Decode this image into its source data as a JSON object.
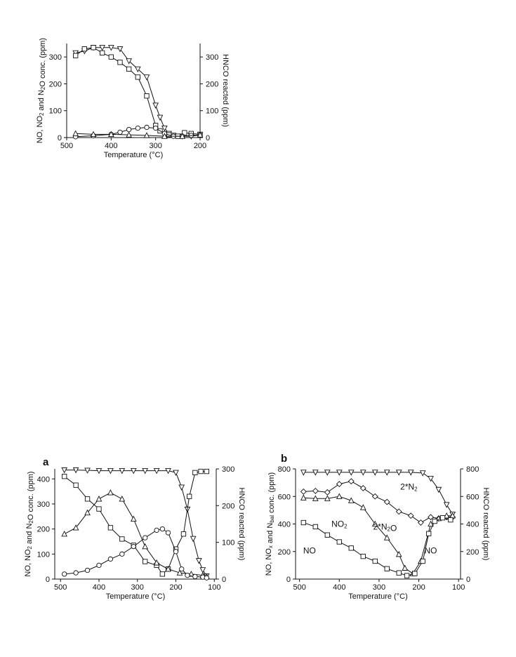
{
  "chart_data": [
    {
      "id": "top",
      "type": "line",
      "panel_label": "",
      "xlabel": "Temperature (°C)",
      "ylabel_parts": [
        [
          "NO, NO",
          ""
        ],
        [
          "2",
          "sub"
        ],
        [
          " and N",
          ""
        ],
        [
          "2",
          "sub"
        ],
        [
          "O conc. (ppm)",
          ""
        ]
      ],
      "y2label": "HNCO reacted (ppm)",
      "xlim": [
        500,
        200
      ],
      "ylim": [
        0,
        350
      ],
      "y2lim": [
        0,
        350
      ],
      "xticks": [
        500,
        400,
        300,
        200
      ],
      "yticks": [
        0,
        100,
        200,
        300
      ],
      "y2ticks": [
        0,
        100,
        200,
        300
      ],
      "series": [
        {
          "marker": "tri-down",
          "axis": "y2",
          "x": [
            480,
            460,
            440,
            420,
            400,
            380,
            360,
            340,
            320,
            300,
            290,
            280,
            270,
            260,
            240,
            220,
            200
          ],
          "y": [
            315,
            322,
            335,
            335,
            335,
            330,
            285,
            255,
            225,
            120,
            75,
            35,
            15,
            8,
            5,
            5,
            10
          ]
        },
        {
          "marker": "square",
          "axis": "y",
          "x": [
            480,
            460,
            440,
            420,
            400,
            380,
            360,
            340,
            320,
            300,
            290,
            270,
            250,
            235,
            220,
            200
          ],
          "y": [
            305,
            330,
            335,
            315,
            300,
            280,
            255,
            225,
            155,
            45,
            25,
            10,
            5,
            18,
            15,
            12
          ]
        },
        {
          "marker": "circle",
          "axis": "y",
          "x": [
            480,
            440,
            400,
            380,
            360,
            340,
            320,
            300,
            280,
            260,
            240,
            220,
            200
          ],
          "y": [
            3,
            7,
            12,
            20,
            30,
            35,
            38,
            35,
            15,
            5,
            5,
            8,
            10
          ]
        },
        {
          "marker": "triangle",
          "axis": "y",
          "x": [
            480,
            440,
            400,
            360,
            320,
            280,
            240,
            200
          ],
          "y": [
            15,
            12,
            12,
            10,
            8,
            5,
            5,
            10
          ]
        }
      ],
      "annotations": []
    },
    {
      "id": "a",
      "type": "line",
      "panel_label": "a",
      "xlabel": "Temperature (°C)",
      "ylabel_parts": [
        [
          "NO, NO",
          ""
        ],
        [
          "2",
          "sub"
        ],
        [
          " and N",
          ""
        ],
        [
          "2",
          "sub"
        ],
        [
          "O conc. (ppm)",
          ""
        ]
      ],
      "y2label": "HNCO reacted (ppm)",
      "xlim": [
        515,
        95
      ],
      "ylim": [
        0,
        440
      ],
      "y2lim": [
        0,
        300
      ],
      "xticks": [
        500,
        400,
        300,
        200,
        100
      ],
      "yticks": [
        0,
        100,
        200,
        300,
        400
      ],
      "y2ticks": [
        0,
        100,
        200,
        300
      ],
      "series": [
        {
          "marker": "tri-down",
          "axis": "y2",
          "x": [
            490,
            460,
            430,
            400,
            370,
            340,
            310,
            280,
            250,
            220,
            200,
            185,
            170,
            155,
            140,
            130,
            120
          ],
          "y": [
            297,
            297,
            296,
            295,
            295,
            295,
            295,
            295,
            295,
            295,
            290,
            250,
            190,
            110,
            50,
            25,
            8
          ]
        },
        {
          "marker": "square",
          "axis": "y",
          "x": [
            490,
            460,
            430,
            400,
            370,
            340,
            310,
            280,
            250,
            235,
            220,
            200,
            180,
            165,
            150,
            135,
            120
          ],
          "y": [
            410,
            375,
            320,
            280,
            205,
            160,
            135,
            70,
            55,
            20,
            40,
            120,
            180,
            330,
            425,
            430,
            430
          ]
        },
        {
          "marker": "triangle",
          "axis": "y",
          "x": [
            490,
            460,
            430,
            400,
            370,
            340,
            310,
            280,
            250,
            220,
            190,
            160,
            130,
            120
          ],
          "y": [
            180,
            205,
            265,
            320,
            345,
            320,
            240,
            130,
            65,
            40,
            25,
            20,
            15,
            10
          ]
        },
        {
          "marker": "circle",
          "axis": "y",
          "x": [
            490,
            460,
            430,
            400,
            370,
            340,
            310,
            280,
            250,
            235,
            220,
            200,
            185,
            170,
            150,
            130,
            120
          ],
          "y": [
            20,
            25,
            35,
            55,
            80,
            100,
            130,
            165,
            195,
            200,
            185,
            110,
            40,
            15,
            10,
            8,
            5
          ]
        }
      ],
      "annotations": []
    },
    {
      "id": "b",
      "type": "line",
      "panel_label": "b",
      "xlabel": "Temperature (°C)",
      "ylabel_parts": [
        [
          "NO, NO",
          ""
        ],
        [
          "x",
          "sub"
        ],
        [
          " and N",
          ""
        ],
        [
          "bal",
          "sub"
        ],
        [
          " conc. (ppm)",
          ""
        ]
      ],
      "y2label": "HNCO reacted (ppm)",
      "xlim": [
        510,
        95
      ],
      "ylim": [
        0,
        800
      ],
      "y2lim": [
        0,
        800
      ],
      "xticks": [
        500,
        400,
        300,
        200,
        100
      ],
      "yticks": [
        0,
        200,
        400,
        600,
        800
      ],
      "y2ticks": [
        0,
        200,
        400,
        600,
        800
      ],
      "series": [
        {
          "marker": "tri-down",
          "axis": "y2",
          "x": [
            490,
            460,
            430,
            400,
            370,
            340,
            310,
            280,
            250,
            220,
            190,
            170,
            150,
            130,
            115
          ],
          "y": [
            775,
            775,
            775,
            775,
            775,
            775,
            775,
            775,
            775,
            775,
            770,
            730,
            650,
            540,
            470
          ]
        },
        {
          "marker": "diamond",
          "axis": "y",
          "x": [
            490,
            460,
            430,
            400,
            370,
            340,
            310,
            280,
            250,
            220,
            195,
            170,
            150,
            130,
            115
          ],
          "y": [
            635,
            640,
            630,
            690,
            710,
            660,
            600,
            560,
            490,
            460,
            410,
            450,
            440,
            450,
            450
          ]
        },
        {
          "marker": "triangle",
          "axis": "y",
          "x": [
            490,
            460,
            430,
            400,
            370,
            340,
            310,
            280,
            250,
            235,
            215,
            195,
            170,
            150,
            130,
            115
          ],
          "y": [
            590,
            585,
            585,
            600,
            570,
            520,
            400,
            300,
            180,
            80,
            40,
            130,
            400,
            440,
            460,
            460
          ]
        },
        {
          "marker": "square",
          "axis": "y",
          "x": [
            490,
            460,
            430,
            400,
            370,
            340,
            310,
            280,
            250,
            230,
            210,
            190,
            175,
            160,
            140,
            120
          ],
          "y": [
            410,
            380,
            320,
            270,
            225,
            165,
            130,
            75,
            45,
            25,
            40,
            130,
            330,
            420,
            445,
            430
          ]
        }
      ],
      "annotations": [
        {
          "label_parts": [
            [
              "2*N",
              ""
            ],
            [
              "2",
              "sub"
            ]
          ],
          "x": 225,
          "y": 650
        },
        {
          "label_parts": [
            [
              "NO",
              ""
            ],
            [
              "2",
              "sub"
            ]
          ],
          "x": 400,
          "y": 380
        },
        {
          "label_parts": [
            [
              "2*N",
              ""
            ],
            [
              "2",
              "sub"
            ],
            [
              "O",
              ""
            ]
          ],
          "x": 285,
          "y": 360
        },
        {
          "label_parts": [
            [
              "NO",
              ""
            ]
          ],
          "x": 475,
          "y": 185
        },
        {
          "label_parts": [
            [
              "NO",
              ""
            ]
          ],
          "x": 170,
          "y": 185
        }
      ]
    }
  ]
}
